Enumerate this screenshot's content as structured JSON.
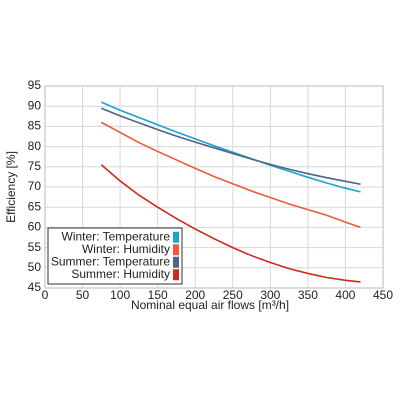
{
  "chart_data": {
    "type": "line",
    "x": [
      75,
      100,
      125,
      150,
      175,
      200,
      225,
      250,
      275,
      300,
      325,
      350,
      375,
      400,
      420
    ],
    "series": [
      {
        "name": "Winter: Temperature",
        "color": "#1ba3d3",
        "values": [
          91,
          89,
          87.2,
          85.4,
          83.6,
          81.9,
          80.2,
          78.6,
          77,
          75.4,
          73.9,
          72.4,
          71,
          69.7,
          68.8
        ]
      },
      {
        "name": "Winter: Humidity",
        "color": "#ec5a3c",
        "values": [
          86,
          83.5,
          81,
          78.8,
          76.7,
          74.6,
          72.6,
          70.8,
          69,
          67.4,
          65.8,
          64.4,
          63,
          61.3,
          60
        ]
      },
      {
        "name": "Summer: Temperature",
        "color": "#4f6582",
        "values": [
          89.5,
          87.6,
          85.9,
          84.2,
          82.6,
          81.1,
          79.7,
          78.3,
          76.9,
          75.6,
          74.4,
          73.3,
          72.3,
          71.4,
          70.7
        ]
      },
      {
        "name": "Summer: Humidity",
        "color": "#cc2a1c",
        "values": [
          75.5,
          71.5,
          68,
          65,
          62.2,
          59.6,
          57.2,
          55,
          53,
          51.3,
          49.8,
          48.6,
          47.6,
          46.9,
          46.5
        ]
      }
    ],
    "legend_order": [
      0,
      1,
      2,
      3
    ],
    "xlabel": "Nominal equal air flows [m³/h]",
    "ylabel": "Efficiency [%]",
    "xlim": [
      0,
      450
    ],
    "xticks": [
      0,
      50,
      100,
      150,
      200,
      250,
      300,
      350,
      400,
      450
    ],
    "ylim": [
      45,
      95
    ],
    "yticks": [
      45,
      50,
      55,
      60,
      65,
      70,
      75,
      80,
      85,
      90,
      95
    ],
    "grid": true,
    "legend": "lower left"
  }
}
